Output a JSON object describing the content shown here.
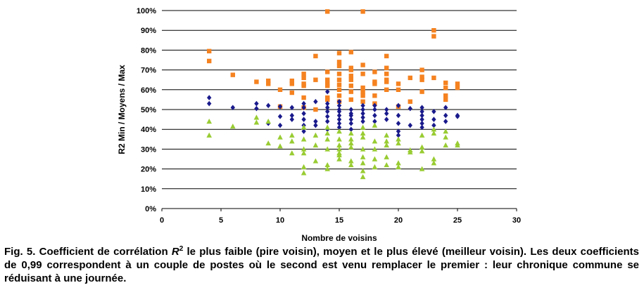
{
  "chart_data": {
    "type": "scatter",
    "xlabel": "Nombre de voisins",
    "ylabel": "R2 Min / Moyens / Max",
    "xlim": [
      0,
      30
    ],
    "ylim": [
      0,
      100
    ],
    "x_ticks": [
      "0",
      "5",
      "10",
      "15",
      "20",
      "25",
      "30"
    ],
    "y_ticks": [
      "0%",
      "10%",
      "20%",
      "30%",
      "40%",
      "50%",
      "60%",
      "70%",
      "80%",
      "90%",
      "100%"
    ],
    "grid": "horizontal",
    "colors": {
      "max": "#f58220",
      "mean": "#1a1a8c",
      "min": "#99cc33"
    },
    "series": [
      {
        "marker": "square",
        "color": "#f58220",
        "points": [
          [
            4,
            79.5
          ],
          [
            4,
            74.5
          ],
          [
            6,
            67.5
          ],
          [
            8,
            64
          ],
          [
            9,
            63
          ],
          [
            9,
            64.5
          ],
          [
            10,
            51.5
          ],
          [
            10,
            60
          ],
          [
            11,
            63
          ],
          [
            11,
            58.5
          ],
          [
            11,
            64.5
          ],
          [
            12,
            68
          ],
          [
            12,
            66
          ],
          [
            12,
            63
          ],
          [
            12,
            62
          ],
          [
            12,
            56
          ],
          [
            12,
            51
          ],
          [
            13,
            77
          ],
          [
            13,
            65
          ],
          [
            13,
            50
          ],
          [
            14,
            99.5
          ],
          [
            14,
            69
          ],
          [
            14,
            65
          ],
          [
            14,
            63
          ],
          [
            14,
            62
          ],
          [
            14,
            56
          ],
          [
            14,
            55
          ],
          [
            15,
            78.5
          ],
          [
            15,
            74
          ],
          [
            15,
            72
          ],
          [
            15,
            68
          ],
          [
            15,
            65
          ],
          [
            15,
            62.5
          ],
          [
            15,
            60
          ],
          [
            15,
            57
          ],
          [
            15,
            54
          ],
          [
            16,
            79
          ],
          [
            16,
            71
          ],
          [
            16,
            70
          ],
          [
            16,
            67
          ],
          [
            16,
            65
          ],
          [
            16,
            62
          ],
          [
            16,
            59
          ],
          [
            16,
            55
          ],
          [
            17,
            99.5
          ],
          [
            17,
            72.5
          ],
          [
            17,
            68
          ],
          [
            17,
            61
          ],
          [
            17,
            59
          ],
          [
            17,
            57
          ],
          [
            17,
            54
          ],
          [
            18,
            69
          ],
          [
            18,
            64
          ],
          [
            18,
            63
          ],
          [
            18,
            57
          ],
          [
            18,
            53
          ],
          [
            19,
            77
          ],
          [
            19,
            71
          ],
          [
            19,
            68
          ],
          [
            19,
            65
          ],
          [
            19,
            64
          ],
          [
            19,
            60
          ],
          [
            20,
            63
          ],
          [
            20,
            60
          ],
          [
            20,
            51.5
          ],
          [
            21,
            66
          ],
          [
            21,
            54
          ],
          [
            22,
            70
          ],
          [
            22,
            66.5
          ],
          [
            22,
            65
          ],
          [
            22,
            59
          ],
          [
            23,
            90
          ],
          [
            23,
            87
          ],
          [
            23,
            66
          ],
          [
            24,
            63.5
          ],
          [
            24,
            61
          ],
          [
            24,
            57
          ],
          [
            24,
            55
          ],
          [
            25,
            63
          ],
          [
            25,
            61
          ]
        ]
      },
      {
        "marker": "diamond",
        "color": "#1a1a8c",
        "points": [
          [
            4,
            56
          ],
          [
            4,
            53
          ],
          [
            6,
            51
          ],
          [
            8,
            53
          ],
          [
            8,
            50.5
          ],
          [
            9,
            52
          ],
          [
            9,
            43
          ],
          [
            10,
            51.5
          ],
          [
            10,
            46.5
          ],
          [
            10,
            42
          ],
          [
            11,
            51
          ],
          [
            11,
            47
          ],
          [
            11,
            45
          ],
          [
            12,
            53
          ],
          [
            12,
            51
          ],
          [
            12,
            48
          ],
          [
            12,
            45
          ],
          [
            12,
            42
          ],
          [
            12,
            39
          ],
          [
            13,
            54
          ],
          [
            13,
            44
          ],
          [
            13,
            42
          ],
          [
            14,
            59
          ],
          [
            14,
            53
          ],
          [
            14,
            51
          ],
          [
            14,
            49
          ],
          [
            14,
            46.5
          ],
          [
            14,
            44
          ],
          [
            14,
            40
          ],
          [
            15,
            54
          ],
          [
            15,
            52
          ],
          [
            15,
            50
          ],
          [
            15,
            49
          ],
          [
            15,
            47
          ],
          [
            15,
            45
          ],
          [
            15,
            43
          ],
          [
            15,
            41
          ],
          [
            16,
            50
          ],
          [
            16,
            48
          ],
          [
            16,
            47
          ],
          [
            16,
            45
          ],
          [
            16,
            43
          ],
          [
            16,
            40
          ],
          [
            17,
            52
          ],
          [
            17,
            50
          ],
          [
            17,
            48
          ],
          [
            17,
            46
          ],
          [
            17,
            44
          ],
          [
            18,
            52
          ],
          [
            18,
            50
          ],
          [
            18,
            47
          ],
          [
            18,
            44
          ],
          [
            19,
            50
          ],
          [
            19,
            48
          ],
          [
            19,
            45
          ],
          [
            20,
            52
          ],
          [
            20,
            47
          ],
          [
            20,
            43
          ],
          [
            20,
            39
          ],
          [
            20,
            37
          ],
          [
            21,
            50.5
          ],
          [
            21,
            42
          ],
          [
            22,
            51
          ],
          [
            22,
            49
          ],
          [
            22,
            47
          ],
          [
            22,
            45
          ],
          [
            22,
            43
          ],
          [
            22,
            41
          ],
          [
            23,
            49
          ],
          [
            23,
            45
          ],
          [
            23,
            42
          ],
          [
            24,
            51
          ],
          [
            24,
            47
          ],
          [
            24,
            44
          ],
          [
            25,
            47
          ],
          [
            25,
            46.5
          ]
        ]
      },
      {
        "marker": "triangle",
        "color": "#99cc33",
        "points": [
          [
            4,
            44
          ],
          [
            4,
            37
          ],
          [
            6,
            41.5
          ],
          [
            8,
            46
          ],
          [
            8,
            43.5
          ],
          [
            9,
            44
          ],
          [
            9,
            33
          ],
          [
            10,
            36
          ],
          [
            10,
            31.5
          ],
          [
            11,
            37
          ],
          [
            11,
            34
          ],
          [
            11,
            28
          ],
          [
            12,
            41
          ],
          [
            12,
            35
          ],
          [
            12,
            30
          ],
          [
            12,
            28
          ],
          [
            12,
            21
          ],
          [
            12,
            18
          ],
          [
            13,
            37
          ],
          [
            13,
            32
          ],
          [
            13,
            24
          ],
          [
            14,
            41
          ],
          [
            14,
            38
          ],
          [
            14,
            35
          ],
          [
            14,
            30
          ],
          [
            14,
            22
          ],
          [
            14,
            20
          ],
          [
            15,
            39
          ],
          [
            15,
            35
          ],
          [
            15,
            32
          ],
          [
            15,
            30
          ],
          [
            15,
            28
          ],
          [
            15,
            27
          ],
          [
            15,
            25
          ],
          [
            16,
            38
          ],
          [
            16,
            35
          ],
          [
            16,
            33
          ],
          [
            16,
            31
          ],
          [
            16,
            24
          ],
          [
            16,
            22
          ],
          [
            17,
            41
          ],
          [
            17,
            38
          ],
          [
            17,
            36
          ],
          [
            17,
            30
          ],
          [
            17,
            26
          ],
          [
            17,
            23
          ],
          [
            17,
            19
          ],
          [
            17,
            16
          ],
          [
            18,
            42
          ],
          [
            18,
            34
          ],
          [
            18,
            30
          ],
          [
            18,
            25
          ],
          [
            18,
            21
          ],
          [
            19,
            37
          ],
          [
            19,
            34
          ],
          [
            19,
            32
          ],
          [
            19,
            26
          ],
          [
            19,
            22
          ],
          [
            20,
            35
          ],
          [
            20,
            33
          ],
          [
            20,
            23
          ],
          [
            20,
            21
          ],
          [
            21,
            29.5
          ],
          [
            21,
            28.5
          ],
          [
            22,
            37
          ],
          [
            22,
            31
          ],
          [
            22,
            29
          ],
          [
            22,
            20
          ],
          [
            23,
            40
          ],
          [
            23,
            38
          ],
          [
            23,
            25
          ],
          [
            23,
            23
          ],
          [
            24,
            39
          ],
          [
            24,
            36
          ],
          [
            24,
            32
          ],
          [
            25,
            33
          ],
          [
            25,
            32
          ]
        ]
      }
    ]
  },
  "caption": {
    "part1": "Fig. 5. Coefficient de corrélation ",
    "r2": "R",
    "sup": "2",
    "part2": " le plus faible (pire voisin), moyen et le plus élevé (meilleur voisin). Les deux coefficients de 0,99 correspondent à un couple de postes où le second est venu remplacer le premier : leur chronique commune se réduisant à une journée."
  }
}
